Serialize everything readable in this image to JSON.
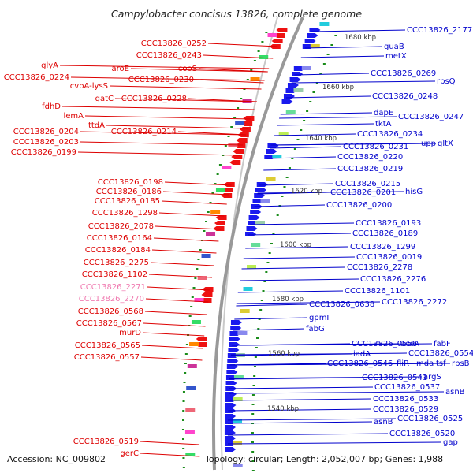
{
  "title": "Campylobacter concisus 13826, complete genome",
  "footer": {
    "accession": "Accession: NC_009802",
    "topology": "Topology: circular; Length: 2,052,007 bp; Genes: 1,988"
  },
  "colors": {
    "left_labels": "#dd0000",
    "right_labels": "#0000cc",
    "faded_labels": "#f07ab0",
    "backbone": "#999999",
    "tick": "#1a8c1a"
  },
  "kbp_marks": [
    "1680 kbp",
    "1660 kbp",
    "1640 kbp",
    "1620 kbp",
    "1600 kbp",
    "1580 kbp",
    "1560 kbp",
    "1540 kbp"
  ],
  "left_labels": [
    "CCC13826_0252",
    "CCC13826_0243",
    "glyA",
    "aroE",
    "cooS",
    "CCC13826_0224",
    "CCC13826_0230",
    "cvpA-lysS",
    "gatC",
    "CCC13826_0228",
    "fdhD",
    "lemA",
    "ttdA",
    "CCC13826_0214",
    "CCC13826_0204",
    "CCC13826_0203",
    "CCC13826_0199",
    "CCC13826_0198",
    "CCC13826_0186",
    "CCC13826_0185",
    "CCC13826_1298",
    "CCC13826_2078",
    "CCC13826_0164",
    "CCC13826_0184",
    "CCC13826_2275",
    "CCC13826_1102",
    "CCC13826_2271",
    "CCC13826_2270",
    "CCC13826_0568",
    "CCC13826_0567",
    "murD",
    "CCC13826_0565",
    "CCC13826_0557",
    "CCC13826_0519",
    "gerC"
  ],
  "right_labels": [
    "CCC13826_2177",
    "guaB",
    "metX",
    "CCC13826_0269",
    "rpsQ",
    "CCC13826_0248",
    "dapE",
    "CCC13826_0247",
    "tktA",
    "CCC13826_0234",
    "upp",
    "gltX",
    "CCC13826_0231",
    "CCC13826_0220",
    "CCC13826_0219",
    "CCC13826_0215",
    "CCC13826_0201",
    "hisG",
    "CCC13826_0200",
    "CCC13826_0193",
    "CCC13826_0189",
    "CCC13826_1299",
    "CCC13826_0019",
    "CCC13826_2278",
    "CCC13826_2276",
    "CCC13826_1101",
    "CCC13826_0638",
    "CCC13826_2272",
    "gpmI",
    "fabG",
    "CCC13826_0556",
    "accA",
    "fabF",
    "iadA",
    "CCC13826_0554",
    "CCC13826_0546",
    "fliR",
    "mda",
    "tsf",
    "rpsB",
    "CCC13826_0541",
    "argS",
    "CCC13826_0537",
    "asnB",
    "CCC13826_0533",
    "CCC13826_0529",
    "asnB",
    "CCC13826_0525",
    "CCC13826_0520",
    "gap"
  ]
}
